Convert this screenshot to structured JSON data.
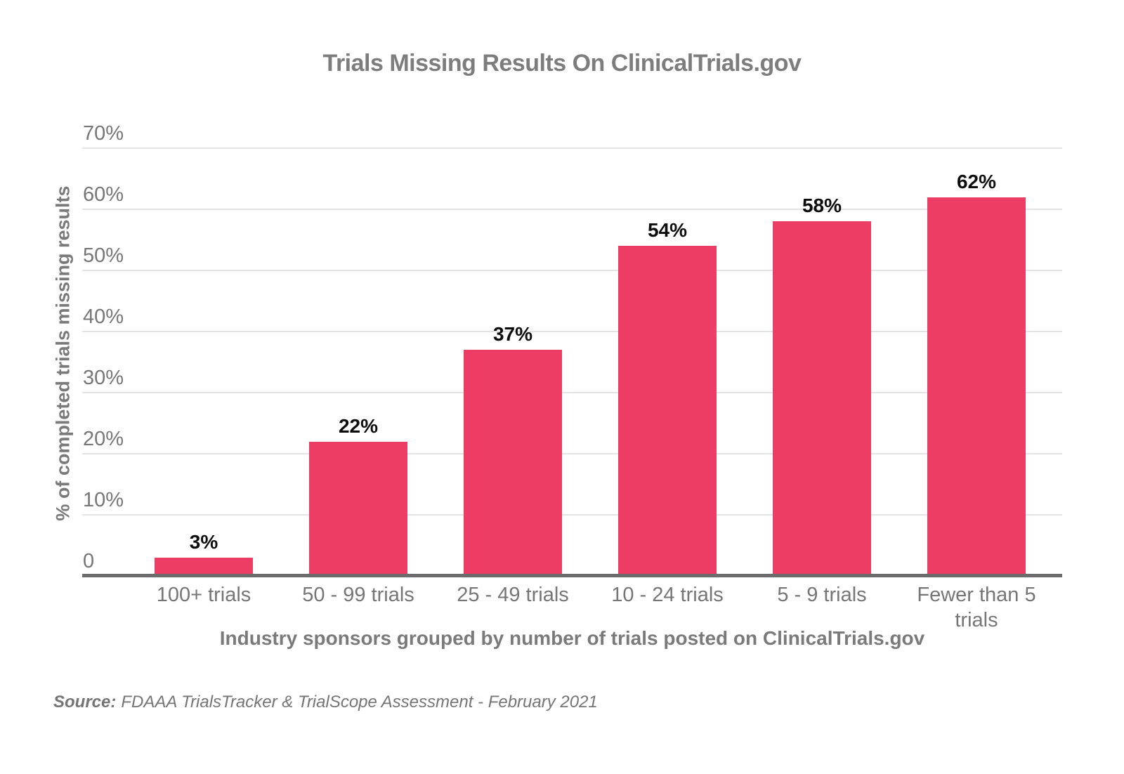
{
  "chart_data": {
    "type": "bar",
    "title": "Trials Missing Results On ClinicalTrials.gov",
    "categories": [
      "100+ trials",
      "50 - 99 trials",
      "25 - 49 trials",
      "10 - 24 trials",
      "5 - 9 trials",
      "Fewer than 5 trials"
    ],
    "values": [
      3,
      22,
      37,
      54,
      58,
      62
    ],
    "value_labels": [
      "3%",
      "22%",
      "37%",
      "54%",
      "58%",
      "62%"
    ],
    "xlabel": "Industry sponsors grouped by number of trials posted on ClinicalTrials.gov",
    "ylabel": "% of completed trials missing results",
    "y_ticks": [
      {
        "label": "70%",
        "value": 70
      },
      {
        "label": "60%",
        "value": 60
      },
      {
        "label": "50%",
        "value": 50
      },
      {
        "label": "40%",
        "value": 40
      },
      {
        "label": "30%",
        "value": 30
      },
      {
        "label": "20%",
        "value": 20
      },
      {
        "label": "10%",
        "value": 10
      },
      {
        "label": "0",
        "value": 0
      }
    ],
    "ylim": [
      0,
      70
    ],
    "grid": true,
    "legend": false
  },
  "source": {
    "prefix": "Source:",
    "text": "FDAAA TrialsTracker & TrialScope Assessment - February 2021"
  },
  "colors": {
    "bar": "#ED3D64",
    "title": "#7D7D7D",
    "axis_title": "#7A7A7A",
    "tick_label": "#767676",
    "value_label": "#0D0D0D",
    "gridline": "#E3E3E3",
    "baseline": "#6B6B6B",
    "source_text": "#757575"
  }
}
